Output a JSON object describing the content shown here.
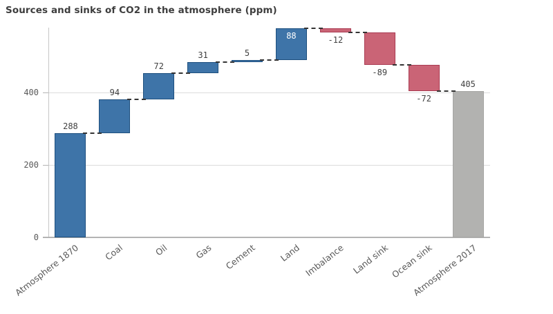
{
  "title": "Sources and sinks of CO2 in the atmosphere (ppm)",
  "colors": {
    "positive_fill": "#3e74a8",
    "positive_border": "#1d4f7e",
    "negative_fill": "#ca6476",
    "negative_border": "#a93b52",
    "total_fill": "#b2b2b0",
    "total_border": "#a6a6a4",
    "connector": "#333333",
    "gridline": "#dcdcdc",
    "axis_line": "#b3b3b3",
    "title_text": "#3d3d3d",
    "value_text": "#404040",
    "inside_value_text": "#ffffff",
    "axis_text": "#595959"
  },
  "chart_data": {
    "type": "bar",
    "variant": "waterfall",
    "title": "Sources and sinks of CO2 in the atmosphere (ppm)",
    "categories": [
      "Atmosphere 1870",
      "Coal",
      "Oil",
      "Gas",
      "Cement",
      "Land",
      "Imbalance",
      "Land sink",
      "Ocean sink",
      "Atmosphere 2017"
    ],
    "items": [
      {
        "label": "Atmosphere 1870",
        "value": 288,
        "display": "288",
        "kind": "start",
        "role": "positive",
        "label_position": "above"
      },
      {
        "label": "Coal",
        "value": 94,
        "display": "94",
        "kind": "increase",
        "role": "positive",
        "label_position": "above"
      },
      {
        "label": "Oil",
        "value": 72,
        "display": "72",
        "kind": "increase",
        "role": "positive",
        "label_position": "above"
      },
      {
        "label": "Gas",
        "value": 31,
        "display": "31",
        "kind": "increase",
        "role": "positive",
        "label_position": "above"
      },
      {
        "label": "Cement",
        "value": 5,
        "display": "5",
        "kind": "increase",
        "role": "positive",
        "label_position": "above"
      },
      {
        "label": "Land",
        "value": 88,
        "display": "88",
        "kind": "increase",
        "role": "positive",
        "label_position": "inside"
      },
      {
        "label": "Imbalance",
        "value": -12,
        "display": "-12",
        "kind": "decrease",
        "role": "negative",
        "label_position": "below"
      },
      {
        "label": "Land sink",
        "value": -89,
        "display": "-89",
        "kind": "decrease",
        "role": "negative",
        "label_position": "below"
      },
      {
        "label": "Ocean sink",
        "value": -72,
        "display": "-72",
        "kind": "decrease",
        "role": "negative",
        "label_position": "below"
      },
      {
        "label": "Atmosphere 2017",
        "value": 405,
        "display": "405",
        "kind": "total",
        "role": "total",
        "label_position": "above"
      }
    ],
    "cumulative": [
      288,
      382,
      454,
      485,
      490,
      578,
      566,
      477,
      405,
      405
    ],
    "ylabel": "",
    "xlabel": "",
    "ylim": [
      0,
      580
    ],
    "yticks": [
      0,
      200,
      400
    ],
    "ytick_labels": [
      "0",
      "200",
      "400"
    ],
    "grid": "horizontal",
    "legend": "none",
    "connector_style": "dashed"
  }
}
